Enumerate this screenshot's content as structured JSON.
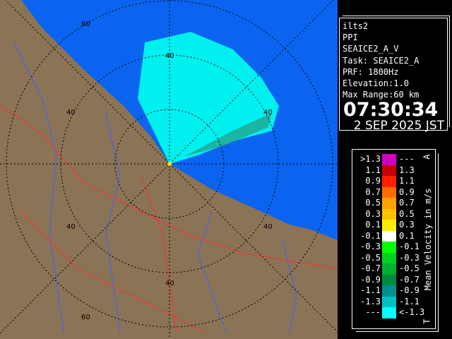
{
  "map": {
    "range_labels": [
      "60",
      "40",
      "40",
      "40",
      "40",
      "40",
      "40",
      "60"
    ],
    "colors": {
      "sea": "#0a64f0",
      "land": "#8b7355",
      "echo": "#00f0f0",
      "rings": "#000000",
      "rivers": "#4060ff",
      "borders": "#ff3030"
    }
  },
  "info": {
    "site": "ilts2",
    "scan": "PPI",
    "product": "SEAICE2_A_V",
    "task": "Task: SEAICE2_A",
    "prf": "PRF: 1800Hz",
    "elevation": "Elevation:1.0",
    "max_range": "Max Range:60 km",
    "time": "07:30:34",
    "date": "2 SEP 2025 JST"
  },
  "legend": {
    "unit": "Mean Velocity in m/s",
    "top_marker": "A",
    "bottom_marker": "T",
    "rows": [
      {
        "lo": ">1.3",
        "hi": "---",
        "color": "#d000c0"
      },
      {
        "lo": "1.1",
        "hi": "1.3",
        "color": "#c80000"
      },
      {
        "lo": "0.9",
        "hi": "1.1",
        "color": "#ff2000"
      },
      {
        "lo": "0.7",
        "hi": "0.9",
        "color": "#ff6a00"
      },
      {
        "lo": "0.5",
        "hi": "0.7",
        "color": "#ffa000"
      },
      {
        "lo": "0.3",
        "hi": "0.5",
        "color": "#ffc000"
      },
      {
        "lo": "0.1",
        "hi": "0.3",
        "color": "#ffec00"
      },
      {
        "lo": "-0.1",
        "hi": "0.1",
        "color": "#ffffff"
      },
      {
        "lo": "-0.3",
        "hi": "-0.1",
        "color": "#00ff00"
      },
      {
        "lo": "-0.5",
        "hi": "-0.3",
        "color": "#00d020"
      },
      {
        "lo": "-0.7",
        "hi": "-0.5",
        "color": "#00b030"
      },
      {
        "lo": "-0.9",
        "hi": "-0.7",
        "color": "#008a40"
      },
      {
        "lo": "-1.1",
        "hi": "-0.9",
        "color": "#009090"
      },
      {
        "lo": "-1.3",
        "hi": "-1.1",
        "color": "#00c0c0"
      },
      {
        "lo": "---",
        "hi": "<-1.3",
        "color": "#00ffff"
      }
    ]
  }
}
